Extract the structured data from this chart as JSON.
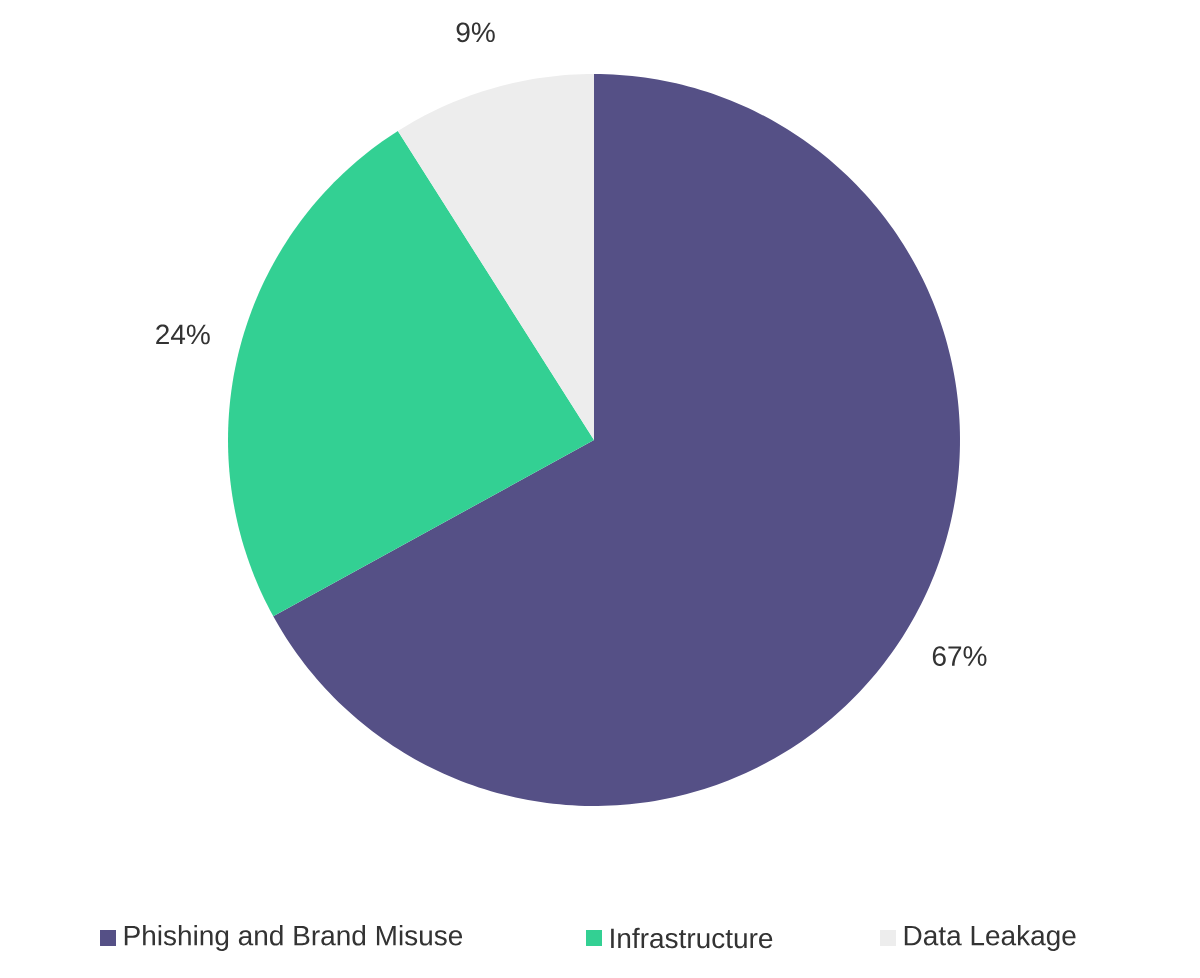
{
  "chart_data": {
    "type": "pie",
    "categories": [
      "Phishing and Brand Misuse",
      "Infrastructure",
      "Data Leakage"
    ],
    "values": [
      67,
      24,
      9
    ],
    "value_labels": [
      "67%",
      "24%",
      "9%"
    ],
    "colors": [
      "#555086",
      "#33d093",
      "#ededed"
    ],
    "legend": "bottom"
  }
}
